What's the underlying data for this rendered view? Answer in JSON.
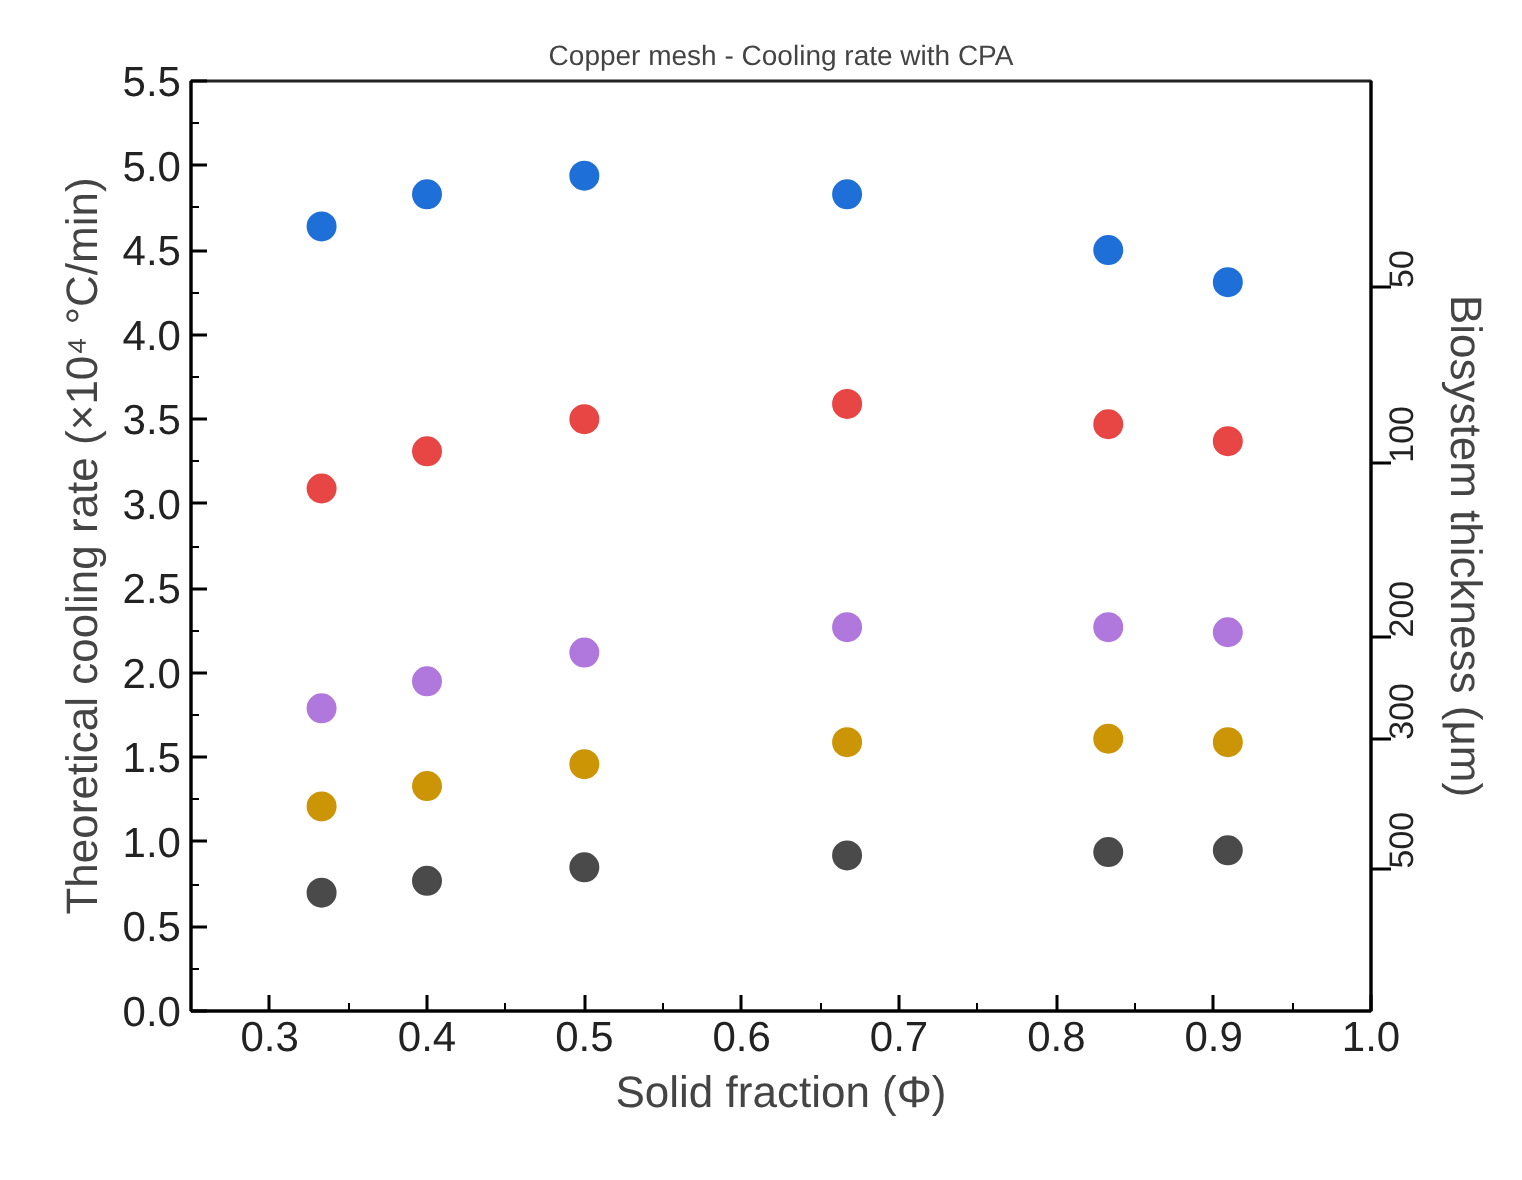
{
  "chart_data": {
    "type": "scatter",
    "title": "Copper mesh - Cooling rate with CPA",
    "xlabel": "Solid fraction (Φ)",
    "ylabel": "Theoretical cooling rate (×10⁴ °C/min)",
    "y2label": "Biosystem thickness (μm)",
    "x": [
      0.333,
      0.4,
      0.5,
      0.667,
      0.833,
      0.909
    ],
    "series": [
      {
        "color": "#1f6fd8",
        "values": [
          4.64,
          4.83,
          4.94,
          4.83,
          4.5,
          4.31
        ]
      },
      {
        "color": "#e84545",
        "values": [
          3.09,
          3.31,
          3.5,
          3.59,
          3.47,
          3.37
        ]
      },
      {
        "color": "#b077dd",
        "values": [
          1.79,
          1.95,
          2.12,
          2.27,
          2.27,
          2.24
        ]
      },
      {
        "color": "#cc9505",
        "values": [
          1.21,
          1.33,
          1.46,
          1.59,
          1.61,
          1.59
        ]
      },
      {
        "color": "#4a4a4a",
        "values": [
          0.7,
          0.77,
          0.85,
          0.92,
          0.94,
          0.95
        ]
      }
    ],
    "xlim": [
      0.25,
      1.0
    ],
    "xticks": [
      0.3,
      0.4,
      0.5,
      0.6,
      0.7,
      0.8,
      0.9,
      {
        "value": 1,
        "label": "1.0"
      }
    ],
    "ylim": [
      0,
      5.5
    ],
    "yticks": [
      {
        "value": 0,
        "label": "0.0"
      },
      0.5,
      {
        "value": 1,
        "label": "1.0"
      },
      1.5,
      {
        "value": 2,
        "label": "2.0"
      },
      2.5,
      {
        "value": 3,
        "label": "3.0"
      },
      3.5,
      {
        "value": 4,
        "label": "4.0"
      },
      4.5,
      {
        "value": 5,
        "label": "5.0"
      },
      5.5
    ],
    "y2lim": [
      880,
      22
    ],
    "y2ticks": [
      50,
      100,
      200,
      300,
      500
    ],
    "log": "y2",
    "marker": "circle",
    "grid": false
  }
}
